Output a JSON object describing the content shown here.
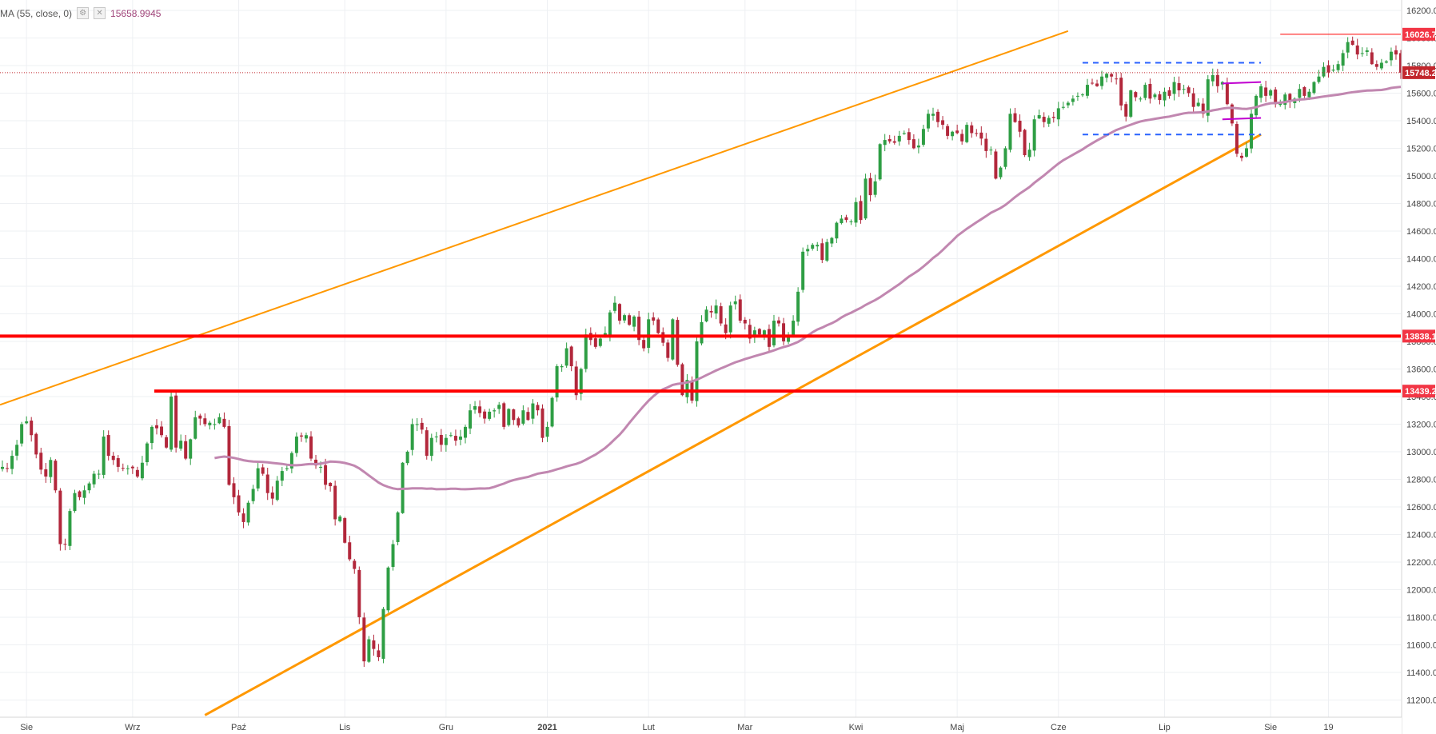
{
  "indicator": {
    "label": "MA (55, close, 0)",
    "value": "15658.9945",
    "settings_icon": "gear-icon",
    "close_icon": "close-icon"
  },
  "chart_data": {
    "type": "candlestick",
    "title": "",
    "x_tick_labels": [
      {
        "label": "Sie",
        "t": 5,
        "bold": false
      },
      {
        "label": "Wrz",
        "t": 27,
        "bold": false
      },
      {
        "label": "Paź",
        "t": 49,
        "bold": false
      },
      {
        "label": "Lis",
        "t": 71,
        "bold": false
      },
      {
        "label": "Gru",
        "t": 92,
        "bold": false
      },
      {
        "label": "2021",
        "t": 113,
        "bold": true
      },
      {
        "label": "Lut",
        "t": 134,
        "bold": false
      },
      {
        "label": "Mar",
        "t": 154,
        "bold": false
      },
      {
        "label": "Kwi",
        "t": 177,
        "bold": false
      },
      {
        "label": "Maj",
        "t": 198,
        "bold": false
      },
      {
        "label": "Cze",
        "t": 219,
        "bold": false
      },
      {
        "label": "Lip",
        "t": 241,
        "bold": false
      },
      {
        "label": "Sie",
        "t": 263,
        "bold": false
      },
      {
        "label": "19",
        "t": 275,
        "bold": false
      }
    ],
    "y_ticks": [
      11200,
      11400,
      11600,
      11800,
      12000,
      12200,
      12400,
      12600,
      12800,
      13000,
      13200,
      13400,
      13600,
      13800,
      14000,
      14200,
      14400,
      14600,
      14800,
      15000,
      15200,
      15400,
      15600,
      15800,
      16000,
      16200
    ],
    "ylim": [
      11075,
      16275
    ],
    "x_range": [
      -0.5,
      290
    ],
    "closes": [
      12890,
      12880,
      12970,
      13050,
      13200,
      13220,
      13120,
      12980,
      12870,
      12820,
      12940,
      12720,
      12330,
      12330,
      12570,
      12700,
      12670,
      12720,
      12770,
      12840,
      12840,
      13110,
      12970,
      12940,
      12890,
      12880,
      12880,
      12880,
      12820,
      12920,
      13060,
      13180,
      13170,
      13120,
      13030,
      13400,
      13030,
      13080,
      12950,
      13090,
      13250,
      13240,
      13200,
      13210,
      13200,
      13250,
      13180,
      12760,
      12670,
      12560,
      12490,
      12630,
      12730,
      12880,
      12840,
      12700,
      12660,
      12790,
      12860,
      12880,
      12990,
      13110,
      13110,
      13120,
      12950,
      12900,
      12890,
      12760,
      12750,
      12510,
      12530,
      12340,
      12220,
      12150,
      11800,
      11480,
      11640,
      11570,
      11510,
      11860,
      12160,
      12330,
      12560,
      12920,
      13000,
      13200,
      13200,
      13160,
      12970,
      13100,
      13110,
      13050,
      13100,
      13120,
      13080,
      13110,
      13180,
      13300,
      13330,
      13280,
      13240,
      13290,
      13300,
      13340,
      13180,
      13310,
      13230,
      13190,
      13300,
      13230,
      13350,
      13300,
      13100,
      13180,
      13390,
      13620,
      13620,
      13750,
      13620,
      13410,
      13600,
      13850,
      13810,
      13760,
      13820,
      13860,
      14010,
      14080,
      13950,
      13990,
      13920,
      13980,
      13810,
      13750,
      13960,
      13950,
      13860,
      13790,
      13680,
      13960,
      13630,
      13410,
      13520,
      13370,
      13800,
      13940,
      14030,
      14010,
      14060,
      13930,
      13860,
      14060,
      14090,
      13950,
      13930,
      13820,
      13880,
      13850,
      13880,
      13760,
      13950,
      13930,
      13800,
      13840,
      13950,
      14160,
      14450,
      14470,
      14500,
      14500,
      14390,
      14520,
      14550,
      14660,
      14690,
      14680,
      14670,
      14810,
      14680,
      14980,
      14860,
      14960,
      15230,
      15260,
      15250,
      15240,
      15290,
      15310,
      15260,
      15200,
      15220,
      15340,
      15450,
      15450,
      15390,
      15370,
      15290,
      15320,
      15310,
      15250,
      15370,
      15310,
      15310,
      15270,
      15180,
      15190,
      14980,
      15060,
      15200,
      15450,
      15390,
      15320,
      15150,
      15190,
      15410,
      15440,
      15390,
      15420,
      15420,
      15490,
      15500,
      15530,
      15560,
      15580,
      15590,
      15660,
      15670,
      15650,
      15720,
      15740,
      15720,
      15700,
      15510,
      15430,
      15620,
      15570,
      15560,
      15660,
      15560,
      15590,
      15550,
      15610,
      15580,
      15680,
      15620,
      15630,
      15600,
      15500,
      15530,
      15450,
      15700,
      15730,
      15650,
      15680,
      15520,
      15380,
      15160,
      15130,
      15200,
      15450,
      15580,
      15650,
      15580,
      15620,
      15520,
      15530,
      15590,
      15540,
      15560,
      15630,
      15580,
      15610,
      15680,
      15720,
      15790,
      15750,
      15770,
      15810,
      15890,
      15970,
      15950,
      15880,
      15890,
      15910,
      15810,
      15790,
      15820,
      15830,
      15900,
      15880,
      15748
    ],
    "ma_line": {
      "name": "",
      "period": 55,
      "start": 44,
      "color": "#c187b0"
    },
    "last_value": 15748.2,
    "price_tags": [
      {
        "text": "16026.7",
        "value": 16026.7,
        "color": "#f23645"
      },
      {
        "text": "15748.2",
        "value": 15748.2,
        "color": "#c2272d"
      },
      {
        "text": "13838.1",
        "value": 13838.1,
        "color": "#f23645"
      },
      {
        "text": "13439.2",
        "value": 13439.2,
        "color": "#f23645"
      }
    ],
    "horizontal_levels": [
      {
        "value": 13838.1,
        "x_from": -0.5,
        "x_to": 290,
        "color": "#ff0000"
      },
      {
        "value": 13439.2,
        "x_from": 31.5,
        "x_to": 290,
        "color": "#ff0000"
      },
      {
        "value": 16026.7,
        "x_from": 265,
        "x_to": 290,
        "color": "#ff0000"
      }
    ],
    "trend_lines": [
      {
        "t1": -0.5,
        "v1": 13340,
        "t2": 221,
        "v2": 16050,
        "color": "#ff9800"
      },
      {
        "t1": 42,
        "v1": 11090,
        "t2": 261,
        "v2": 15300,
        "color": "#ff9800"
      }
    ],
    "dashed_lines": [
      {
        "t1": 224,
        "v1": 15820,
        "t2": 261,
        "v2": 15820,
        "color": "#2962ff"
      },
      {
        "t1": 224,
        "v1": 15300,
        "t2": 261,
        "v2": 15300,
        "color": "#2962ff"
      }
    ],
    "magenta_lines": [
      {
        "t1": 253,
        "v1": 15670,
        "t2": 261,
        "v2": 15680,
        "color": "#c000d0"
      },
      {
        "t1": 253,
        "v1": 15410,
        "t2": 261,
        "v2": 15420,
        "color": "#c000d0"
      }
    ],
    "up_color": "#2e9e44",
    "down_color": "#b2273b",
    "grid": true
  }
}
